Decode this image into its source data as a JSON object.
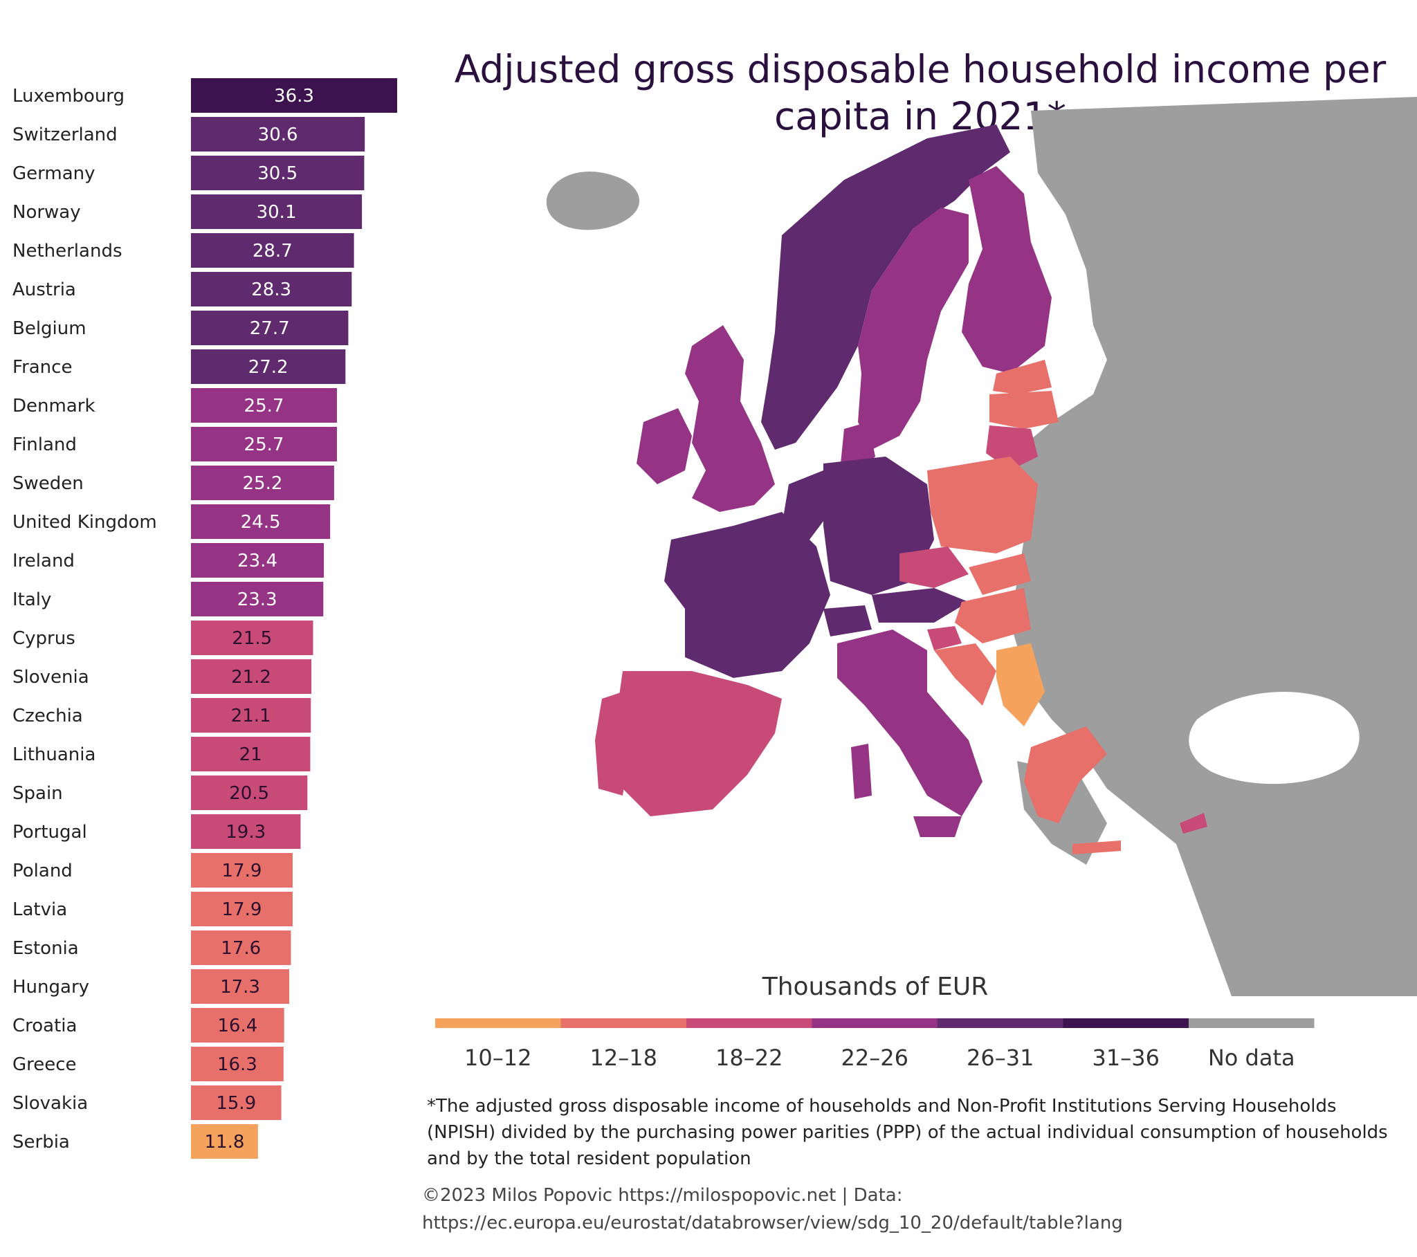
{
  "title": "Adjusted gross disposable household income per capita in 2021*",
  "chart_data": {
    "type": "bar",
    "orientation": "horizontal",
    "title": "Adjusted gross disposable household income per capita in 2021*",
    "unit": "Thousands of EUR",
    "categories": [
      "Luxembourg",
      "Switzerland",
      "Germany",
      "Norway",
      "Netherlands",
      "Austria",
      "Belgium",
      "France",
      "Denmark",
      "Finland",
      "Sweden",
      "United Kingdom",
      "Ireland",
      "Italy",
      "Cyprus",
      "Slovenia",
      "Czechia",
      "Lithuania",
      "Spain",
      "Portugal",
      "Poland",
      "Latvia",
      "Estonia",
      "Hungary",
      "Croatia",
      "Greece",
      "Slovakia",
      "Serbia"
    ],
    "values": [
      36.3,
      30.6,
      30.5,
      30.1,
      28.7,
      28.3,
      27.7,
      27.2,
      25.7,
      25.7,
      25.2,
      24.5,
      23.4,
      23.3,
      21.5,
      21.2,
      21.1,
      21,
      20.5,
      19.3,
      17.9,
      17.9,
      17.6,
      17.3,
      16.4,
      16.3,
      15.9,
      11.8
    ],
    "value_labels": [
      "36.3",
      "30.6",
      "30.5",
      "30.1",
      "28.7",
      "28.3",
      "27.7",
      "27.2",
      "25.7",
      "25.7",
      "25.2",
      "24.5",
      "23.4",
      "23.3",
      "21.5",
      "21.2",
      "21.1",
      "21",
      "20.5",
      "19.3",
      "17.9",
      "17.9",
      "17.6",
      "17.3",
      "16.4",
      "16.3",
      "15.9",
      "11.8"
    ],
    "xlim": [
      0,
      36.3
    ],
    "bins": [
      {
        "label": "10–12",
        "color": "#f4a25c"
      },
      {
        "label": "12–18",
        "color": "#e8706a"
      },
      {
        "label": "18–22",
        "color": "#c84a76"
      },
      {
        "label": "22–26",
        "color": "#953484"
      },
      {
        "label": "26–31",
        "color": "#5f2a6e"
      },
      {
        "label": "31–36",
        "color": "#3c134f"
      },
      {
        "label": "No data",
        "color": "#9e9e9e"
      }
    ]
  },
  "legend": {
    "title": "Thousands of EUR"
  },
  "footnote": "*The adjusted gross disposable income of households and Non-Profit Institutions Serving Households (NPISH) divided by the purchasing power parities (PPP) of the actual individual consumption of households and by the total resident population",
  "credit_line1": "©2023 Milos Popovic https://milospopovic.net | Data:",
  "credit_line2": "https://ec.europa.eu/eurostat/databrowser/view/sdg_10_20/default/table?lang",
  "colors": {
    "nodata": "#9e9e9e",
    "water": "#ffffff",
    "title": "#2a0f3f"
  }
}
